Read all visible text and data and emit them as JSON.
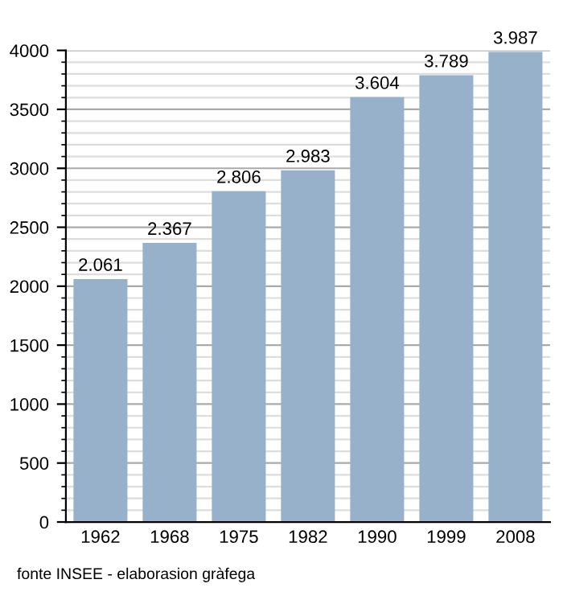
{
  "chart_data": {
    "type": "bar",
    "categories": [
      "1962",
      "1968",
      "1975",
      "1982",
      "1990",
      "1999",
      "2008"
    ],
    "values": [
      2061,
      2367,
      2806,
      2983,
      3604,
      3789,
      3987
    ],
    "value_labels": [
      "2.061",
      "2.367",
      "2.806",
      "2.983",
      "3.604",
      "3.789",
      "3.987"
    ],
    "color": "#97b1cb",
    "ylim": [
      0,
      4000
    ],
    "yticks": [
      0,
      500,
      1000,
      1500,
      2000,
      2500,
      3000,
      3500,
      4000
    ],
    "grid": "y",
    "annotations": [
      "fonte INSEE - elaborasion gràfega"
    ]
  }
}
